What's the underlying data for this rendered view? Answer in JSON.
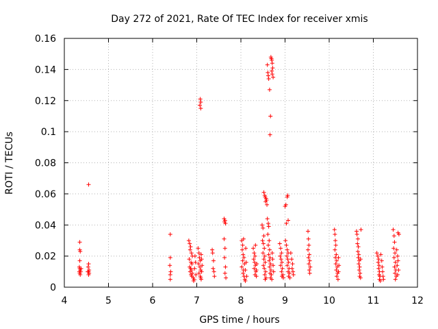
{
  "chart_data": {
    "type": "scatter",
    "title": "Day 272 of 2021, Rate Of TEC Index for receiver xmis",
    "xlabel": "GPS time / hours",
    "ylabel": "ROTI / TECUs",
    "xlim": [
      4,
      12
    ],
    "ylim": [
      0,
      0.16
    ],
    "xticks": [
      4,
      5,
      6,
      7,
      8,
      9,
      10,
      11,
      12
    ],
    "yticks": [
      0,
      0.02,
      0.04,
      0.06,
      0.08,
      0.1,
      0.12,
      0.14,
      0.16
    ],
    "xtick_labels": [
      "4",
      "5",
      "6",
      "7",
      "8",
      "9",
      "10",
      "11",
      "12"
    ],
    "ytick_labels": [
      "0",
      "0.02",
      "0.04",
      "0.06",
      "0.08",
      "0.1",
      "0.12",
      "0.14",
      "0.16"
    ],
    "grid": true,
    "marker": "+",
    "marker_color": "#ff0000",
    "series": [
      {
        "name": "ROTI",
        "points": [
          [
            4.35,
            0.029
          ],
          [
            4.35,
            0.024
          ],
          [
            4.36,
            0.023
          ],
          [
            4.35,
            0.017
          ],
          [
            4.34,
            0.013
          ],
          [
            4.35,
            0.012
          ],
          [
            4.36,
            0.011
          ],
          [
            4.34,
            0.01
          ],
          [
            4.35,
            0.009
          ],
          [
            4.36,
            0.008
          ],
          [
            4.37,
            0.01
          ],
          [
            4.38,
            0.012
          ],
          [
            4.55,
            0.066
          ],
          [
            4.55,
            0.015
          ],
          [
            4.54,
            0.013
          ],
          [
            4.56,
            0.011
          ],
          [
            4.55,
            0.01
          ],
          [
            4.53,
            0.01
          ],
          [
            4.56,
            0.009
          ],
          [
            4.55,
            0.008
          ],
          [
            6.4,
            0.034
          ],
          [
            6.4,
            0.019
          ],
          [
            6.39,
            0.014
          ],
          [
            6.41,
            0.01
          ],
          [
            6.4,
            0.008
          ],
          [
            6.4,
            0.005
          ],
          [
            6.82,
            0.03
          ],
          [
            6.84,
            0.028
          ],
          [
            6.86,
            0.026
          ],
          [
            6.85,
            0.024
          ],
          [
            6.88,
            0.022
          ],
          [
            6.9,
            0.02
          ],
          [
            6.83,
            0.018
          ],
          [
            6.87,
            0.016
          ],
          [
            6.89,
            0.015
          ],
          [
            6.84,
            0.013
          ],
          [
            6.86,
            0.012
          ],
          [
            6.88,
            0.011
          ],
          [
            6.85,
            0.01
          ],
          [
            6.9,
            0.009
          ],
          [
            6.87,
            0.008
          ],
          [
            6.89,
            0.007
          ],
          [
            6.92,
            0.006
          ],
          [
            6.94,
            0.005
          ],
          [
            6.93,
            0.004
          ],
          [
            6.96,
            0.02
          ],
          [
            6.97,
            0.016
          ],
          [
            6.95,
            0.012
          ],
          [
            6.98,
            0.008
          ],
          [
            7.03,
            0.025
          ],
          [
            7.05,
            0.022
          ],
          [
            7.06,
            0.019
          ],
          [
            7.08,
            0.017
          ],
          [
            7.04,
            0.015
          ],
          [
            7.07,
            0.013
          ],
          [
            7.09,
            0.011
          ],
          [
            7.05,
            0.009
          ],
          [
            7.08,
            0.007
          ],
          [
            7.1,
            0.005
          ],
          [
            7.1,
            0.021
          ],
          [
            7.11,
            0.018
          ],
          [
            7.12,
            0.014
          ],
          [
            7.11,
            0.01
          ],
          [
            7.09,
            0.006
          ],
          [
            7.08,
            0.121
          ],
          [
            7.09,
            0.119
          ],
          [
            7.07,
            0.117
          ],
          [
            7.09,
            0.115
          ],
          [
            7.35,
            0.024
          ],
          [
            7.36,
            0.022
          ],
          [
            7.38,
            0.017
          ],
          [
            7.37,
            0.012
          ],
          [
            7.39,
            0.01
          ],
          [
            7.4,
            0.007
          ],
          [
            7.62,
            0.044
          ],
          [
            7.64,
            0.043
          ],
          [
            7.63,
            0.042
          ],
          [
            7.65,
            0.041
          ],
          [
            7.62,
            0.031
          ],
          [
            7.64,
            0.025
          ],
          [
            7.63,
            0.019
          ],
          [
            7.65,
            0.013
          ],
          [
            7.64,
            0.009
          ],
          [
            7.66,
            0.006
          ],
          [
            8.02,
            0.03
          ],
          [
            8.04,
            0.027
          ],
          [
            8.06,
            0.031
          ],
          [
            8.03,
            0.024
          ],
          [
            8.05,
            0.021
          ],
          [
            8.07,
            0.019
          ],
          [
            8.04,
            0.017
          ],
          [
            8.08,
            0.015
          ],
          [
            8.02,
            0.013
          ],
          [
            8.06,
            0.011
          ],
          [
            8.05,
            0.009
          ],
          [
            8.07,
            0.007
          ],
          [
            8.09,
            0.005
          ],
          [
            8.1,
            0.004
          ],
          [
            8.11,
            0.025
          ],
          [
            8.12,
            0.016
          ],
          [
            8.1,
            0.011
          ],
          [
            8.13,
            0.007
          ],
          [
            8.28,
            0.025
          ],
          [
            8.3,
            0.022
          ],
          [
            8.32,
            0.02
          ],
          [
            8.29,
            0.018
          ],
          [
            8.31,
            0.016
          ],
          [
            8.33,
            0.014
          ],
          [
            8.3,
            0.012
          ],
          [
            8.34,
            0.01
          ],
          [
            8.32,
            0.008
          ],
          [
            8.35,
            0.007
          ],
          [
            8.33,
            0.027
          ],
          [
            8.36,
            0.015
          ],
          [
            8.35,
            0.011
          ],
          [
            8.48,
            0.04
          ],
          [
            8.5,
            0.038
          ],
          [
            8.52,
            0.033
          ],
          [
            8.49,
            0.03
          ],
          [
            8.51,
            0.028
          ],
          [
            8.53,
            0.025
          ],
          [
            8.5,
            0.022
          ],
          [
            8.54,
            0.02
          ],
          [
            8.52,
            0.018
          ],
          [
            8.55,
            0.016
          ],
          [
            8.51,
            0.014
          ],
          [
            8.53,
            0.012
          ],
          [
            8.56,
            0.01
          ],
          [
            8.54,
            0.008
          ],
          [
            8.57,
            0.006
          ],
          [
            8.55,
            0.005
          ],
          [
            8.52,
            0.061
          ],
          [
            8.54,
            0.059
          ],
          [
            8.55,
            0.058
          ],
          [
            8.57,
            0.057
          ],
          [
            8.58,
            0.056
          ],
          [
            8.56,
            0.055
          ],
          [
            8.59,
            0.053
          ],
          [
            8.6,
            0.044
          ],
          [
            8.62,
            0.041
          ],
          [
            8.63,
            0.039
          ],
          [
            8.61,
            0.034
          ],
          [
            8.64,
            0.03
          ],
          [
            8.62,
            0.027
          ],
          [
            8.65,
            0.024
          ],
          [
            8.63,
            0.021
          ],
          [
            8.66,
            0.019
          ],
          [
            8.64,
            0.017
          ],
          [
            8.67,
            0.015
          ],
          [
            8.65,
            0.013
          ],
          [
            8.68,
            0.011
          ],
          [
            8.66,
            0.009
          ],
          [
            8.69,
            0.008
          ],
          [
            8.67,
            0.006
          ],
          [
            8.7,
            0.005
          ],
          [
            8.71,
            0.022
          ],
          [
            8.72,
            0.018
          ],
          [
            8.73,
            0.014
          ],
          [
            8.74,
            0.01
          ],
          [
            8.6,
            0.143
          ],
          [
            8.61,
            0.138
          ],
          [
            8.62,
            0.136
          ],
          [
            8.63,
            0.134
          ],
          [
            8.65,
            0.127
          ],
          [
            8.68,
            0.148
          ],
          [
            8.69,
            0.147
          ],
          [
            8.7,
            0.146
          ],
          [
            8.71,
            0.144
          ],
          [
            8.72,
            0.141
          ],
          [
            8.7,
            0.139
          ],
          [
            8.71,
            0.137
          ],
          [
            8.73,
            0.135
          ],
          [
            8.67,
            0.11
          ],
          [
            8.66,
            0.098
          ],
          [
            8.88,
            0.028
          ],
          [
            8.9,
            0.025
          ],
          [
            8.92,
            0.022
          ],
          [
            8.89,
            0.02
          ],
          [
            8.91,
            0.018
          ],
          [
            8.93,
            0.016
          ],
          [
            8.9,
            0.014
          ],
          [
            8.94,
            0.012
          ],
          [
            8.92,
            0.01
          ],
          [
            8.95,
            0.008
          ],
          [
            8.93,
            0.007
          ],
          [
            8.96,
            0.006
          ],
          [
            9.0,
            0.052
          ],
          [
            9.02,
            0.053
          ],
          [
            9.05,
            0.058
          ],
          [
            9.06,
            0.059
          ],
          [
            9.03,
            0.041
          ],
          [
            9.07,
            0.043
          ],
          [
            9.01,
            0.03
          ],
          [
            9.03,
            0.027
          ],
          [
            9.05,
            0.024
          ],
          [
            9.07,
            0.022
          ],
          [
            9.04,
            0.02
          ],
          [
            9.06,
            0.018
          ],
          [
            9.08,
            0.016
          ],
          [
            9.05,
            0.014
          ],
          [
            9.09,
            0.012
          ],
          [
            9.07,
            0.01
          ],
          [
            9.1,
            0.009
          ],
          [
            9.08,
            0.007
          ],
          [
            9.11,
            0.006
          ],
          [
            9.13,
            0.022
          ],
          [
            9.15,
            0.018
          ],
          [
            9.17,
            0.015
          ],
          [
            9.16,
            0.012
          ],
          [
            9.18,
            0.01
          ],
          [
            9.19,
            0.008
          ],
          [
            9.52,
            0.036
          ],
          [
            9.53,
            0.031
          ],
          [
            9.54,
            0.027
          ],
          [
            9.52,
            0.024
          ],
          [
            9.55,
            0.021
          ],
          [
            9.53,
            0.019
          ],
          [
            9.56,
            0.017
          ],
          [
            9.54,
            0.015
          ],
          [
            9.57,
            0.013
          ],
          [
            9.55,
            0.011
          ],
          [
            9.56,
            0.009
          ],
          [
            10.12,
            0.037
          ],
          [
            10.13,
            0.034
          ],
          [
            10.14,
            0.03
          ],
          [
            10.15,
            0.027
          ],
          [
            10.13,
            0.024
          ],
          [
            10.16,
            0.021
          ],
          [
            10.14,
            0.019
          ],
          [
            10.17,
            0.017
          ],
          [
            10.15,
            0.015
          ],
          [
            10.18,
            0.013
          ],
          [
            10.16,
            0.011
          ],
          [
            10.19,
            0.009
          ],
          [
            10.17,
            0.007
          ],
          [
            10.2,
            0.005
          ],
          [
            10.21,
            0.019
          ],
          [
            10.22,
            0.014
          ],
          [
            10.21,
            0.01
          ],
          [
            10.62,
            0.036
          ],
          [
            10.63,
            0.034
          ],
          [
            10.65,
            0.031
          ],
          [
            10.64,
            0.028
          ],
          [
            10.66,
            0.026
          ],
          [
            10.65,
            0.023
          ],
          [
            10.67,
            0.021
          ],
          [
            10.66,
            0.019
          ],
          [
            10.68,
            0.017
          ],
          [
            10.67,
            0.015
          ],
          [
            10.69,
            0.013
          ],
          [
            10.68,
            0.011
          ],
          [
            10.7,
            0.009
          ],
          [
            10.69,
            0.007
          ],
          [
            10.71,
            0.006
          ],
          [
            10.72,
            0.037
          ],
          [
            10.71,
            0.018
          ],
          [
            11.08,
            0.022
          ],
          [
            11.1,
            0.02
          ],
          [
            11.12,
            0.018
          ],
          [
            11.11,
            0.016
          ],
          [
            11.13,
            0.014
          ],
          [
            11.12,
            0.012
          ],
          [
            11.14,
            0.01
          ],
          [
            11.13,
            0.008
          ],
          [
            11.15,
            0.007
          ],
          [
            11.14,
            0.005
          ],
          [
            11.16,
            0.004
          ],
          [
            11.17,
            0.021
          ],
          [
            11.19,
            0.017
          ],
          [
            11.2,
            0.013
          ],
          [
            11.21,
            0.01
          ],
          [
            11.22,
            0.007
          ],
          [
            11.23,
            0.005
          ],
          [
            11.45,
            0.037
          ],
          [
            11.47,
            0.033
          ],
          [
            11.48,
            0.029
          ],
          [
            11.46,
            0.025
          ],
          [
            11.49,
            0.022
          ],
          [
            11.47,
            0.019
          ],
          [
            11.5,
            0.016
          ],
          [
            11.48,
            0.013
          ],
          [
            11.51,
            0.011
          ],
          [
            11.49,
            0.009
          ],
          [
            11.52,
            0.007
          ],
          [
            11.5,
            0.005
          ],
          [
            11.53,
            0.024
          ],
          [
            11.55,
            0.02
          ],
          [
            11.56,
            0.017
          ],
          [
            11.54,
            0.014
          ],
          [
            11.57,
            0.011
          ],
          [
            11.55,
            0.008
          ],
          [
            11.56,
            0.035
          ],
          [
            11.58,
            0.034
          ]
        ]
      }
    ]
  }
}
